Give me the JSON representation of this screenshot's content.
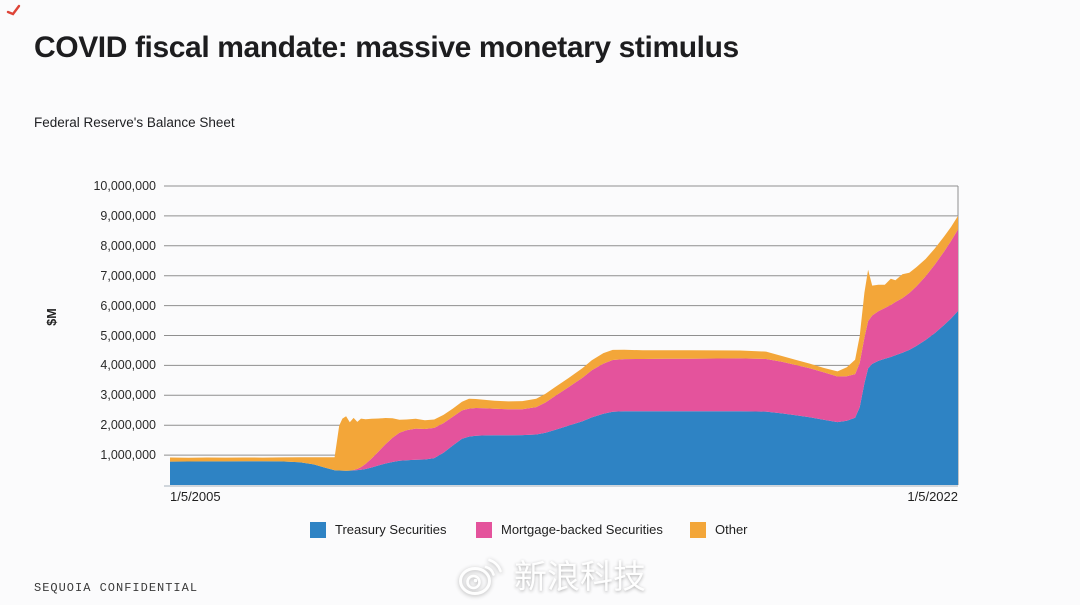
{
  "page": {
    "title": "COVID fiscal mandate: massive monetary stimulus",
    "subtitle": "Federal Reserve's Balance Sheet",
    "footer_left": "SEQUOIA CONFIDENTIAL",
    "watermark_text": "新浪科技"
  },
  "chart_data": {
    "type": "area",
    "stacked": true,
    "title": "Federal Reserve's Balance Sheet",
    "ylabel": "$M",
    "ylim": [
      0,
      10000000
    ],
    "ytick_step": 1000000,
    "yticks": [
      "10,000,000",
      "9,000,000",
      "8,000,000",
      "7,000,000",
      "6,000,000",
      "5,000,000",
      "4,000,000",
      "3,000,000",
      "2,000,000",
      "1,000,000"
    ],
    "xlabels": [
      "1/5/2005",
      "1/5/2022"
    ],
    "x_range_years": [
      2005,
      2022
    ],
    "grid": "horizontal-major",
    "legend_position": "bottom",
    "colors": {
      "grid": "#8f8f8f",
      "axis": "#c2cad1"
    },
    "series": [
      {
        "name": "Treasury Securities",
        "color": "#2e83c4"
      },
      {
        "name": "Mortgage-backed Securities",
        "color": "#e4539c"
      },
      {
        "name": "Other",
        "color": "#f3a639"
      }
    ],
    "points_format": [
      "year",
      "treasury_securities_$M",
      "mortgage_backed_securities_$M",
      "other_$M"
    ],
    "points": [
      [
        2005.0,
        782000,
        0,
        138000
      ],
      [
        2005.4,
        786000,
        0,
        128000
      ],
      [
        2005.8,
        788000,
        0,
        132000
      ],
      [
        2006.2,
        790000,
        0,
        125000
      ],
      [
        2006.6,
        792000,
        0,
        128000
      ],
      [
        2007.0,
        792000,
        0,
        125000
      ],
      [
        2007.4,
        788000,
        0,
        135000
      ],
      [
        2007.8,
        760000,
        0,
        165000
      ],
      [
        2008.1,
        690000,
        0,
        235000
      ],
      [
        2008.35,
        580000,
        0,
        345000
      ],
      [
        2008.55,
        495000,
        0,
        435000
      ],
      [
        2008.65,
        485000,
        0,
        1500000
      ],
      [
        2008.72,
        480000,
        0,
        1740000
      ],
      [
        2008.8,
        478000,
        0,
        1822000
      ],
      [
        2008.88,
        480000,
        0,
        1620000
      ],
      [
        2008.96,
        488000,
        15000,
        1742000
      ],
      [
        2009.04,
        498000,
        40000,
        1572000
      ],
      [
        2009.12,
        510000,
        90000,
        1620000
      ],
      [
        2009.22,
        535000,
        170000,
        1495000
      ],
      [
        2009.35,
        585000,
        300000,
        1330000
      ],
      [
        2009.5,
        655000,
        470000,
        1100000
      ],
      [
        2009.65,
        720000,
        640000,
        880000
      ],
      [
        2009.8,
        770000,
        810000,
        650000
      ],
      [
        2009.95,
        810000,
        940000,
        430000
      ],
      [
        2010.1,
        830000,
        1000000,
        360000
      ],
      [
        2010.3,
        845000,
        1040000,
        330000
      ],
      [
        2010.5,
        852000,
        1020000,
        295000
      ],
      [
        2010.7,
        900000,
        1010000,
        280000
      ],
      [
        2010.9,
        1080000,
        990000,
        275000
      ],
      [
        2011.1,
        1320000,
        965000,
        270000
      ],
      [
        2011.3,
        1550000,
        945000,
        290000
      ],
      [
        2011.45,
        1620000,
        935000,
        330000
      ],
      [
        2011.6,
        1650000,
        925000,
        300000
      ],
      [
        2011.8,
        1660000,
        905000,
        280000
      ],
      [
        2012.0,
        1665000,
        885000,
        265000
      ],
      [
        2012.3,
        1665000,
        870000,
        260000
      ],
      [
        2012.6,
        1670000,
        865000,
        270000
      ],
      [
        2012.9,
        1690000,
        915000,
        280000
      ],
      [
        2013.1,
        1750000,
        1010000,
        290000
      ],
      [
        2013.3,
        1840000,
        1130000,
        295000
      ],
      [
        2013.6,
        1985000,
        1290000,
        305000
      ],
      [
        2013.9,
        2130000,
        1460000,
        320000
      ],
      [
        2014.1,
        2260000,
        1580000,
        335000
      ],
      [
        2014.35,
        2380000,
        1680000,
        350000
      ],
      [
        2014.55,
        2450000,
        1730000,
        340000
      ],
      [
        2014.8,
        2465000,
        1745000,
        315000
      ],
      [
        2015.2,
        2465000,
        1750000,
        290000
      ],
      [
        2015.7,
        2465000,
        1755000,
        285000
      ],
      [
        2016.2,
        2465000,
        1760000,
        280000
      ],
      [
        2016.8,
        2465000,
        1765000,
        272000
      ],
      [
        2017.3,
        2465000,
        1768000,
        265000
      ],
      [
        2017.86,
        2455000,
        1760000,
        245000
      ],
      [
        2018.2,
        2395000,
        1725000,
        195000
      ],
      [
        2018.5,
        2330000,
        1685000,
        170000
      ],
      [
        2018.8,
        2265000,
        1640000,
        155000
      ],
      [
        2019.1,
        2185000,
        1585000,
        148000
      ],
      [
        2019.4,
        2105000,
        1525000,
        170000
      ],
      [
        2019.6,
        2150000,
        1490000,
        300000
      ],
      [
        2019.78,
        2250000,
        1460000,
        480000
      ],
      [
        2019.88,
        2600000,
        1480000,
        900000
      ],
      [
        2019.98,
        3400000,
        1530000,
        1500000
      ],
      [
        2020.06,
        3900000,
        1580000,
        1720000
      ],
      [
        2020.15,
        4050000,
        1620000,
        1000000
      ],
      [
        2020.28,
        4150000,
        1660000,
        890000
      ],
      [
        2020.42,
        4220000,
        1700000,
        780000
      ],
      [
        2020.55,
        4280000,
        1740000,
        880000
      ],
      [
        2020.65,
        4340000,
        1780000,
        730000
      ],
      [
        2020.8,
        4420000,
        1830000,
        800000
      ],
      [
        2020.95,
        4520000,
        1900000,
        680000
      ],
      [
        2021.1,
        4650000,
        1990000,
        640000
      ],
      [
        2021.3,
        4850000,
        2130000,
        580000
      ],
      [
        2021.5,
        5080000,
        2290000,
        540000
      ],
      [
        2021.7,
        5350000,
        2460000,
        500000
      ],
      [
        2021.85,
        5570000,
        2590000,
        470000
      ],
      [
        2022.0,
        5820000,
        2730000,
        450000
      ]
    ]
  }
}
